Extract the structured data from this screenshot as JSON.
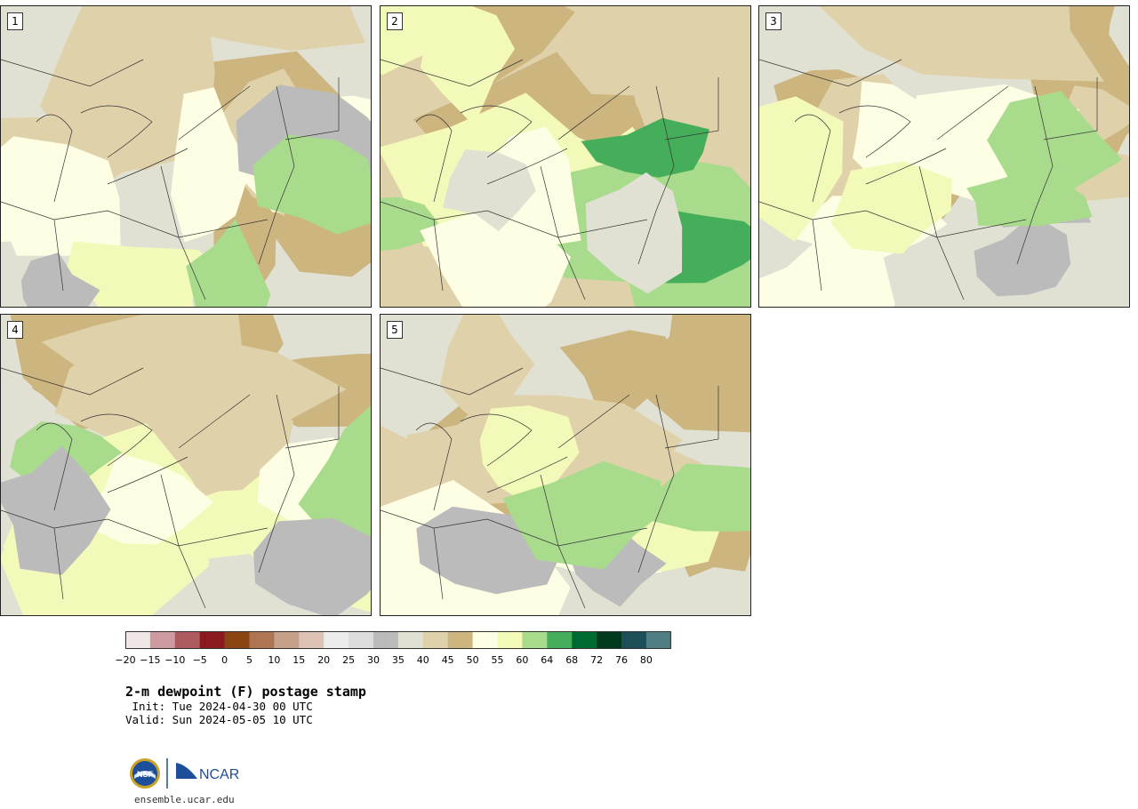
{
  "colors": {
    "c_m20": "#f1e6e6",
    "c_m15": "#cd9b9f",
    "c_m10": "#ac5a5e",
    "c_m5": "#8b1a1f",
    "c_0": "#8b4513",
    "c_5": "#ad7650",
    "c_10": "#c7a08a",
    "c_15": "#dec2b3",
    "c_20": "#ececec",
    "c_25": "#dcdcdc",
    "c_30": "#bbbbbb",
    "c_35": "#e0e0d3",
    "c_40": "#dfd1a9",
    "c_45": "#cdb57f",
    "c_50": "#fefee4",
    "c_55": "#f3f9b9",
    "c_60": "#a9db8c",
    "c_64": "#44ae5b",
    "c_68": "#006b31",
    "c_72": "#003b1e",
    "c_76": "#1c4f57",
    "c_80": "#4f7f84"
  },
  "panels": [
    {
      "label": "1",
      "base": "#e0e0d3",
      "patches": [
        "#cdb57f",
        "#dfd1a9",
        "#fefee4",
        "#f3f9b9",
        "#bbbbbb",
        "#a9db8c"
      ]
    },
    {
      "label": "2",
      "base": "#dfd1a9",
      "patches": [
        "#cdb57f",
        "#f3f9b9",
        "#a9db8c",
        "#44ae5b",
        "#fefee4",
        "#e0e0d3"
      ]
    },
    {
      "label": "3",
      "base": "#e0e0d3",
      "patches": [
        "#cdb57f",
        "#dfd1a9",
        "#fefee4",
        "#f3f9b9",
        "#bbbbbb",
        "#a9db8c"
      ]
    },
    {
      "label": "4",
      "base": "#e0e0d3",
      "patches": [
        "#cdb57f",
        "#dfd1a9",
        "#f3f9b9",
        "#fefee4",
        "#a9db8c",
        "#bbbbbb"
      ]
    },
    {
      "label": "5",
      "base": "#e0e0d3",
      "patches": [
        "#cdb57f",
        "#dfd1a9",
        "#fefee4",
        "#f3f9b9",
        "#bbbbbb",
        "#a9db8c"
      ]
    }
  ],
  "colorbar": {
    "tick_labels": [
      "−20",
      "−15",
      "−10",
      "−5",
      "0",
      "5",
      "10",
      "15",
      "20",
      "25",
      "30",
      "35",
      "40",
      "45",
      "50",
      "55",
      "60",
      "64",
      "68",
      "72",
      "76",
      "80"
    ]
  },
  "title": "2-m dewpoint (F) postage stamp",
  "init": " Init: Tue 2024-04-30 00 UTC",
  "valid": "Valid: Sun 2024-05-05 10 UTC",
  "logo": {
    "nsf": "NSF",
    "ncar": "NCAR"
  },
  "url": "ensemble.ucar.edu"
}
